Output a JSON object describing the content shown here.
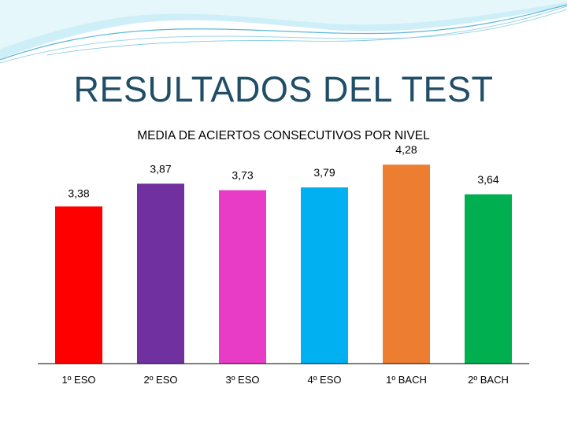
{
  "slide": {
    "title": "RESULTADOS DEL TEST"
  },
  "colors": {
    "decoration_fill": "#cfeff8",
    "decoration_line": "#5bb8d8",
    "title": "#1f4e66",
    "axis": "#000000"
  },
  "chart_data": {
    "type": "bar",
    "title": "MEDIA DE ACIERTOS CONSECUTIVOS POR NIVEL",
    "xlabel": "",
    "ylabel": "",
    "ylim": [
      0,
      4.3
    ],
    "grid": false,
    "legend": "none",
    "categories": [
      "1º ESO",
      "2º ESO",
      "3º ESO",
      "4º ESO",
      "1º BACH",
      "2º BACH"
    ],
    "values": [
      3.38,
      3.87,
      3.73,
      3.79,
      4.28,
      3.64
    ],
    "value_labels": [
      "3,38",
      "3,87",
      "3,73",
      "3,79",
      "4,28",
      "3,64"
    ],
    "bar_colors": [
      "#ff0000",
      "#7030a0",
      "#e83cc6",
      "#00b0f0",
      "#ed7d31",
      "#00b050"
    ]
  }
}
